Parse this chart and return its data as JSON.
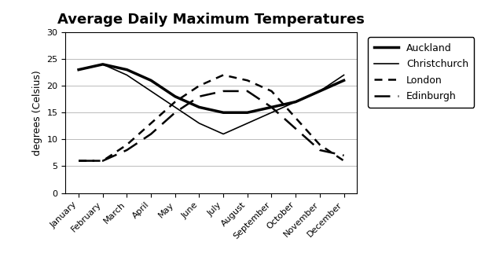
{
  "title": "Average Daily Maximum Temperatures",
  "ylabel": "degrees (Celsius)",
  "months": [
    "January",
    "February",
    "March",
    "April",
    "May",
    "June",
    "July",
    "August",
    "September",
    "October",
    "November",
    "December"
  ],
  "series": {
    "Auckland": [
      23,
      24,
      23,
      21,
      18,
      16,
      15,
      15,
      16,
      17,
      19,
      21
    ],
    "Christchurch": [
      23,
      24,
      22,
      19,
      16,
      13,
      11,
      13,
      15,
      17,
      19,
      22
    ],
    "London": [
      6,
      6,
      9,
      13,
      17,
      20,
      22,
      21,
      19,
      14,
      9,
      6
    ],
    "Edinburgh": [
      6,
      6,
      8,
      11,
      15,
      18,
      19,
      19,
      16,
      12,
      8,
      7
    ]
  },
  "styles": {
    "Auckland": {
      "color": "black",
      "linestyle": "-",
      "linewidth": 2.5,
      "dashes": null
    },
    "Christchurch": {
      "color": "black",
      "linestyle": "-",
      "linewidth": 1.2,
      "dashes": null
    },
    "London": {
      "color": "black",
      "linestyle": "--",
      "linewidth": 1.8,
      "dashes": [
        4,
        3
      ]
    },
    "Edinburgh": {
      "color": "black",
      "linestyle": "--",
      "linewidth": 1.8,
      "dashes": [
        8,
        4
      ]
    }
  },
  "ylim": [
    0,
    30
  ],
  "yticks": [
    0,
    5,
    10,
    15,
    20,
    25,
    30
  ],
  "background_color": "#ffffff",
  "grid_color": "#bbbbbb",
  "title_fontsize": 13,
  "label_fontsize": 9,
  "tick_fontsize": 8,
  "legend_fontsize": 9,
  "figsize": [
    6.4,
    3.41
  ],
  "dpi": 100
}
